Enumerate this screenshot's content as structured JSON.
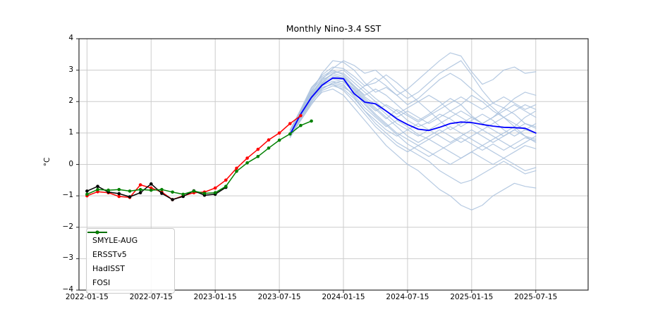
{
  "chart_data": {
    "type": "line",
    "title": "Monthly Nino-3.4 SST",
    "xlabel": "",
    "ylabel": "°C",
    "grid": true,
    "legend_position": "lower-left",
    "axis": {
      "x_domain_months": [
        -0.75,
        46.9
      ],
      "x_tick_months": [
        0,
        6,
        12,
        18,
        24,
        30,
        36,
        42
      ],
      "x_tick_labels": [
        "2022-01-15",
        "2022-07-15",
        "2023-01-15",
        "2023-07-15",
        "2024-01-15",
        "2024-07-15",
        "2025-01-15",
        "2025-07-15"
      ],
      "y_domain": [
        -4,
        4
      ],
      "y_tick_values": [
        4,
        3,
        2,
        1,
        0,
        -1,
        -2,
        -3,
        -4
      ],
      "y_tick_labels": [
        "4",
        "3",
        "2",
        "1",
        "0",
        "−1",
        "−2",
        "−3",
        "−4"
      ]
    },
    "colors": {
      "ensemble_member": "#a9c1dd",
      "ensemble_mean": "#0000ff",
      "ersstv5": "#ff0000",
      "hadisst": "#000000",
      "fosi": "#008000",
      "grid": "#cccccc",
      "spine": "#2a2a2a"
    },
    "legend": [
      {
        "label": "SMYLE-AUG",
        "color": "#0000ff",
        "marker": false
      },
      {
        "label": "ERSSTv5",
        "color": "#ff0000",
        "marker": true
      },
      {
        "label": "HadISST",
        "color": "#000000",
        "marker": true
      },
      {
        "label": "FOSI",
        "color": "#008000",
        "marker": true
      }
    ],
    "series": {
      "ersstv5": {
        "name": "ERSSTv5",
        "start_month": 0,
        "marker": true,
        "width": 1.5,
        "values": [
          -1.0,
          -0.87,
          -0.9,
          -1.02,
          -1.05,
          -0.65,
          -0.75,
          -0.88,
          -1.12,
          -1.0,
          -0.9,
          -0.88,
          -0.75,
          -0.5,
          -0.12,
          0.2,
          0.48,
          0.78,
          1.0,
          1.3,
          1.55
        ]
      },
      "hadisst": {
        "name": "HadISST",
        "start_month": 0,
        "marker": true,
        "width": 1.5,
        "values": [
          -0.85,
          -0.7,
          -0.88,
          -0.93,
          -1.03,
          -0.9,
          -0.62,
          -0.92,
          -1.12,
          -1.02,
          -0.84,
          -0.98,
          -0.95,
          -0.73
        ]
      },
      "fosi": {
        "name": "FOSI",
        "start_month": 0,
        "marker": true,
        "width": 1.5,
        "values": [
          -0.95,
          -0.8,
          -0.82,
          -0.8,
          -0.85,
          -0.8,
          -0.82,
          -0.8,
          -0.88,
          -0.95,
          -0.85,
          -0.92,
          -0.9,
          -0.7,
          -0.22,
          0.05,
          0.25,
          0.52,
          0.77,
          0.97,
          1.24,
          1.38
        ]
      },
      "ensemble_mean": {
        "name": "SMYLE-AUG",
        "start_month": 19,
        "marker": false,
        "width": 1.8,
        "values": [
          0.95,
          1.6,
          2.13,
          2.52,
          2.75,
          2.73,
          2.25,
          1.98,
          1.93,
          1.7,
          1.45,
          1.27,
          1.12,
          1.08,
          1.18,
          1.3,
          1.35,
          1.33,
          1.27,
          1.22,
          1.18,
          1.17,
          1.15,
          1.0
        ]
      },
      "ensemble_members": {
        "name": "SMYLE-AUG ensemble members",
        "start_month": 19,
        "marker": false,
        "width": 1.2,
        "values": [
          [
            1.05,
            1.7,
            2.3,
            2.9,
            3.3,
            3.25,
            3.0,
            2.6,
            2.3,
            2.45,
            2.2,
            2.4,
            2.7,
            3.0,
            3.3,
            3.55,
            3.45,
            2.95,
            2.55,
            2.7,
            3.0,
            3.1,
            2.9,
            2.95
          ],
          [
            1.0,
            1.6,
            2.2,
            2.7,
            3.05,
            3.3,
            3.15,
            2.9,
            3.0,
            2.7,
            2.35,
            2.1,
            2.3,
            2.6,
            2.9,
            3.1,
            3.3,
            2.85,
            2.35,
            1.95,
            1.8,
            2.1,
            2.3,
            2.2
          ],
          [
            0.95,
            1.55,
            2.1,
            2.6,
            2.9,
            3.0,
            2.7,
            2.4,
            2.1,
            1.85,
            1.6,
            1.8,
            2.0,
            2.2,
            2.0,
            1.7,
            1.9,
            2.2,
            2.0,
            1.7,
            1.5,
            1.7,
            1.9,
            1.75
          ],
          [
            1.1,
            1.75,
            2.45,
            2.8,
            3.0,
            2.85,
            2.5,
            2.2,
            2.4,
            2.2,
            1.9,
            1.6,
            1.4,
            1.6,
            1.85,
            2.1,
            1.9,
            1.55,
            1.3,
            1.5,
            1.8,
            1.6,
            1.3,
            1.2
          ],
          [
            1.0,
            1.6,
            2.15,
            2.55,
            2.75,
            2.7,
            2.4,
            2.0,
            1.7,
            1.9,
            1.7,
            1.4,
            1.2,
            1.35,
            1.6,
            1.45,
            1.2,
            1.4,
            1.6,
            1.4,
            1.1,
            0.9,
            1.1,
            1.3
          ],
          [
            0.9,
            1.45,
            2.0,
            2.4,
            2.6,
            2.5,
            2.2,
            1.8,
            1.5,
            1.2,
            1.4,
            1.2,
            0.95,
            0.8,
            1.0,
            1.2,
            1.0,
            0.8,
            0.6,
            0.8,
            1.0,
            1.2,
            0.9,
            0.7
          ],
          [
            1.05,
            1.65,
            2.25,
            2.65,
            2.9,
            2.8,
            2.45,
            2.1,
            1.8,
            1.5,
            1.2,
            0.9,
            0.7,
            0.9,
            1.1,
            0.9,
            0.7,
            0.9,
            1.1,
            0.9,
            0.7,
            0.5,
            0.7,
            0.9
          ],
          [
            0.95,
            1.5,
            2.05,
            2.45,
            2.55,
            2.35,
            2.0,
            1.6,
            1.2,
            0.9,
            0.6,
            0.4,
            0.6,
            0.8,
            0.6,
            0.4,
            0.2,
            0.4,
            0.6,
            0.4,
            0.2,
            0.4,
            0.6,
            0.5
          ],
          [
            0.9,
            1.4,
            1.95,
            2.3,
            2.4,
            2.2,
            1.8,
            1.4,
            1.0,
            0.6,
            0.3,
            0.0,
            -0.2,
            -0.5,
            -0.8,
            -1.0,
            -1.3,
            -1.45,
            -1.3,
            -1.0,
            -0.8,
            -0.6,
            -0.7,
            -0.75
          ],
          [
            1.0,
            1.55,
            2.1,
            2.5,
            2.65,
            2.55,
            2.15,
            1.7,
            1.3,
            1.0,
            0.7,
            0.5,
            0.3,
            0.1,
            -0.2,
            -0.4,
            -0.6,
            -0.5,
            -0.3,
            -0.1,
            0.1,
            -0.1,
            -0.3,
            -0.2
          ],
          [
            1.1,
            1.7,
            2.35,
            2.75,
            2.95,
            2.9,
            2.6,
            2.3,
            2.0,
            1.7,
            1.5,
            1.7,
            1.5,
            1.3,
            1.5,
            1.7,
            1.5,
            1.3,
            1.1,
            1.3,
            1.5,
            1.3,
            1.1,
            1.0
          ],
          [
            0.85,
            1.4,
            1.9,
            2.35,
            2.5,
            2.4,
            2.1,
            1.7,
            1.4,
            1.1,
            0.9,
            1.1,
            1.3,
            1.1,
            0.9,
            0.7,
            0.9,
            1.1,
            0.9,
            0.7,
            0.9,
            1.1,
            1.3,
            1.15
          ],
          [
            1.0,
            1.6,
            2.2,
            2.6,
            2.8,
            2.75,
            2.5,
            2.15,
            1.9,
            1.6,
            1.3,
            1.1,
            0.9,
            1.1,
            1.3,
            1.5,
            1.7,
            1.5,
            1.3,
            1.5,
            1.7,
            1.9,
            1.7,
            1.5
          ],
          [
            1.05,
            1.68,
            2.28,
            2.7,
            2.85,
            2.75,
            2.35,
            1.95,
            1.6,
            1.3,
            1.0,
            0.8,
            0.6,
            0.4,
            0.2,
            0.0,
            0.2,
            0.4,
            0.2,
            0.0,
            0.2,
            0.0,
            -0.2,
            -0.1
          ],
          [
            0.95,
            1.5,
            2.0,
            2.4,
            2.6,
            2.65,
            2.4,
            2.05,
            1.75,
            1.45,
            1.75,
            1.55,
            1.35,
            1.55,
            1.75,
            1.95,
            2.15,
            1.95,
            1.75,
            1.95,
            2.15,
            1.95,
            1.75,
            1.9
          ],
          [
            1.0,
            1.62,
            2.18,
            2.58,
            2.72,
            2.62,
            2.3,
            1.9,
            1.55,
            1.25,
            0.95,
            0.65,
            0.45,
            0.25,
            0.45,
            0.65,
            0.85,
            0.65,
            0.45,
            0.65,
            0.45,
            0.65,
            0.85,
            0.75
          ],
          [
            0.9,
            1.5,
            2.1,
            2.45,
            2.55,
            2.45,
            2.25,
            2.5,
            2.75,
            2.5,
            2.2,
            1.9,
            2.1,
            2.4,
            2.7,
            2.9,
            2.7,
            2.4,
            2.1,
            1.8,
            1.5,
            1.2,
            1.5,
            1.7
          ],
          [
            1.05,
            1.72,
            2.4,
            2.85,
            3.1,
            3.05,
            2.8,
            2.5,
            2.6,
            2.85,
            2.6,
            2.3,
            2.0,
            1.7,
            1.4,
            1.1,
            1.3,
            1.5,
            1.3,
            1.1,
            0.9,
            1.1,
            0.9,
            0.8
          ]
        ]
      }
    }
  }
}
